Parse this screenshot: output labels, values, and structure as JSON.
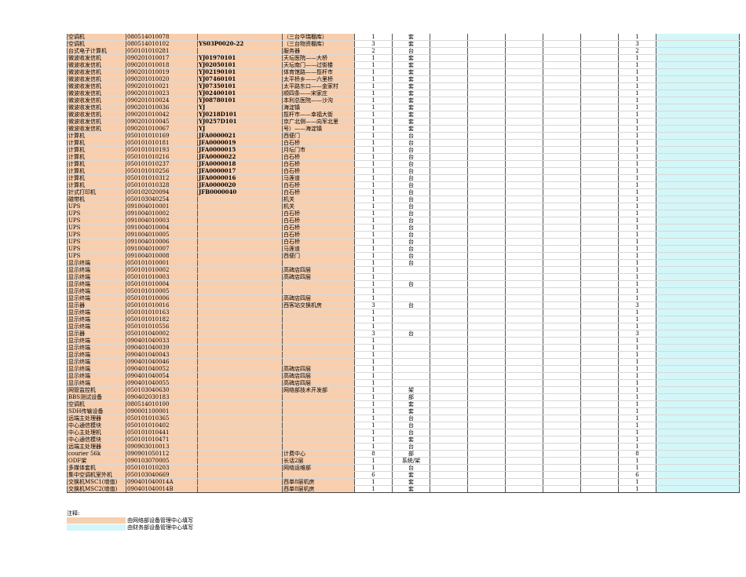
{
  "table": {
    "rows": [
      [
        "空调机",
        "080514010078",
        "",
        "（三台华瑞棚库）",
        "1",
        "套",
        "",
        "",
        "",
        "",
        "",
        "1",
        ""
      ],
      [
        "空调机",
        "080514010102",
        "YS03P0020-22",
        "（三台物资棚库）",
        "3",
        "套",
        "",
        "",
        "",
        "",
        "",
        "3",
        ""
      ],
      [
        "台式电子计算机",
        "050101010281",
        "",
        "服务器",
        "2",
        "台",
        "",
        "",
        "",
        "",
        "",
        "2",
        ""
      ],
      [
        "微波收发信机",
        "090201010017",
        "YJ01970101",
        "天坛医院——大桥",
        "1",
        "套",
        "",
        "",
        "",
        "",
        "",
        "1",
        ""
      ],
      [
        "微波收发信机",
        "090201010018",
        "YJ02050101",
        "天坛南门——过街楼",
        "1",
        "套",
        "",
        "",
        "",
        "",
        "",
        "1",
        ""
      ],
      [
        "微波收发信机",
        "090201010019",
        "YJ02190101",
        "体育馆路——揽杆市",
        "1",
        "套",
        "",
        "",
        "",
        "",
        "",
        "1",
        ""
      ],
      [
        "微波收发信机",
        "090201010020",
        "YJ07460101",
        "太平桥乡——六里桥",
        "1",
        "套",
        "",
        "",
        "",
        "",
        "",
        "1",
        ""
      ],
      [
        "微波收发信机",
        "090201010021",
        "YJ07350101",
        "太平路东口——金家村",
        "1",
        "套",
        "",
        "",
        "",
        "",
        "",
        "1",
        ""
      ],
      [
        "微波收发信机",
        "090201010023",
        "YJ02400101",
        "顺四条——宋家庄",
        "1",
        "套",
        "",
        "",
        "",
        "",
        "",
        "1",
        ""
      ],
      [
        "微波收发信机",
        "090201010024",
        "YJ08780101",
        "本利总医院——沙沟",
        "1",
        "套",
        "",
        "",
        "",
        "",
        "",
        "1",
        ""
      ],
      [
        "微波收发信机",
        "090201010036",
        "YJ",
        "海淀镇",
        "1",
        "套",
        "",
        "",
        "",
        "",
        "",
        "1",
        ""
      ],
      [
        "微波收发信机",
        "090201010042",
        "YJ0218D101",
        "揽杆市——幸福大街",
        "1",
        "套",
        "",
        "",
        "",
        "",
        "",
        "1",
        ""
      ],
      [
        "微波收发信机",
        "090201010045",
        "YJ0257D101",
        "京广北侧——向军北里",
        "1",
        "套",
        "",
        "",
        "",
        "",
        "",
        "1",
        ""
      ],
      [
        "微波收发信机",
        "090201010067",
        "YJ",
        "号）——海淀镇",
        "1",
        "套",
        "",
        "",
        "",
        "",
        "",
        "1",
        ""
      ],
      [
        "计算机",
        "050101010169",
        "JFA0000021",
        "西便门",
        "1",
        "台",
        "",
        "",
        "",
        "",
        "",
        "1",
        ""
      ],
      [
        "计算机",
        "050101010181",
        "JFA0000019",
        "白石桥",
        "1",
        "台",
        "",
        "",
        "",
        "",
        "",
        "1",
        ""
      ],
      [
        "计算机",
        "050101010193",
        "JFA0000015",
        "月坛门市",
        "1",
        "台",
        "",
        "",
        "",
        "",
        "",
        "1",
        ""
      ],
      [
        "计算机",
        "050101010216",
        "JFA0000022",
        "白石桥",
        "1",
        "台",
        "",
        "",
        "",
        "",
        "",
        "1",
        ""
      ],
      [
        "计算机",
        "050101010237",
        "JFA0000018",
        "白石桥",
        "1",
        "台",
        "",
        "",
        "",
        "",
        "",
        "1",
        ""
      ],
      [
        "计算机",
        "050101010256",
        "JFA0000017",
        "白石桥",
        "1",
        "台",
        "",
        "",
        "",
        "",
        "",
        "1",
        ""
      ],
      [
        "计算机",
        "050101010312",
        "JFA0000016",
        "马莲道",
        "1",
        "台",
        "",
        "",
        "",
        "",
        "",
        "1",
        ""
      ],
      [
        "计算机",
        "050101010328",
        "JFA0000020",
        "白石桥",
        "1",
        "台",
        "",
        "",
        "",
        "",
        "",
        "1",
        ""
      ],
      [
        "针式打印机",
        "050102020094",
        "JFB0000040",
        "白石桥",
        "1",
        "台",
        "",
        "",
        "",
        "",
        "",
        "1",
        ""
      ],
      [
        "磁带机",
        "050103040254",
        "",
        "机关",
        "1",
        "台",
        "",
        "",
        "",
        "",
        "",
        "1",
        ""
      ],
      [
        "UPS",
        "091004010001",
        "",
        "机关",
        "1",
        "台",
        "",
        "",
        "",
        "",
        "",
        "1",
        ""
      ],
      [
        "UPS",
        "091004010002",
        "",
        "白石桥",
        "1",
        "台",
        "",
        "",
        "",
        "",
        "",
        "1",
        ""
      ],
      [
        "UPS",
        "091004010003",
        "",
        "白石桥",
        "1",
        "台",
        "",
        "",
        "",
        "",
        "",
        "1",
        ""
      ],
      [
        "UPS",
        "091004010004",
        "",
        "白石桥",
        "1",
        "台",
        "",
        "",
        "",
        "",
        "",
        "1",
        ""
      ],
      [
        "UPS",
        "091004010005",
        "",
        "白石桥",
        "1",
        "台",
        "",
        "",
        "",
        "",
        "",
        "1",
        ""
      ],
      [
        "UPS",
        "091004010006",
        "",
        "白石桥",
        "1",
        "台",
        "",
        "",
        "",
        "",
        "",
        "1",
        ""
      ],
      [
        "UPS",
        "091004010007",
        "",
        "马莲道",
        "1",
        "台",
        "",
        "",
        "",
        "",
        "",
        "1",
        ""
      ],
      [
        "UPS",
        "091004010008",
        "",
        "西便门",
        "1",
        "台",
        "",
        "",
        "",
        "",
        "",
        "1",
        ""
      ],
      [
        "显示终端",
        "050101010001",
        "",
        "",
        "1",
        "台",
        "",
        "",
        "",
        "",
        "",
        "1",
        ""
      ],
      [
        "显示终端",
        "050101010002",
        "",
        "高碑店四层",
        "1",
        "",
        "",
        "",
        "",
        "",
        "",
        "1",
        ""
      ],
      [
        "显示终端",
        "050101010003",
        "",
        "高碑店四层",
        "1",
        "",
        "",
        "",
        "",
        "",
        "",
        "1",
        ""
      ],
      [
        "显示终端",
        "050101010004",
        "",
        "",
        "1",
        "台",
        "",
        "",
        "",
        "",
        "",
        "1",
        ""
      ],
      [
        "显示终端",
        "050101010005",
        "",
        "",
        "1",
        "",
        "",
        "",
        "",
        "",
        "",
        "1",
        ""
      ],
      [
        "显示终端",
        "050101010006",
        "",
        "高碑店四层",
        "1",
        "",
        "",
        "",
        "",
        "",
        "",
        "1",
        ""
      ],
      [
        "显示器",
        "050101010016",
        "",
        "西客站交换机房",
        "3",
        "台",
        "",
        "",
        "",
        "",
        "",
        "3",
        ""
      ],
      [
        "显示终端",
        "050101010163",
        "",
        "",
        "1",
        "",
        "",
        "",
        "",
        "",
        "",
        "1",
        ""
      ],
      [
        "显示终端",
        "050101010182",
        "",
        "",
        "1",
        "",
        "",
        "",
        "",
        "",
        "",
        "1",
        ""
      ],
      [
        "显示终端",
        "050101010556",
        "",
        "",
        "1",
        "",
        "",
        "",
        "",
        "",
        "",
        "1",
        ""
      ],
      [
        "显示器",
        "050101040002",
        "",
        "",
        "3",
        "台",
        "",
        "",
        "",
        "",
        "",
        "3",
        ""
      ],
      [
        "显示终端",
        "090401040033",
        "",
        "",
        "1",
        "",
        "",
        "",
        "",
        "",
        "",
        "1",
        ""
      ],
      [
        "显示终端",
        "090401040039",
        "",
        "",
        "1",
        "",
        "",
        "",
        "",
        "",
        "",
        "1",
        ""
      ],
      [
        "显示终端",
        "090401040043",
        "",
        "",
        "1",
        "",
        "",
        "",
        "",
        "",
        "",
        "1",
        ""
      ],
      [
        "显示终端",
        "090401040046",
        "",
        "",
        "1",
        "",
        "",
        "",
        "",
        "",
        "",
        "1",
        ""
      ],
      [
        "显示终端",
        "090401040052",
        "",
        "高碑店四层",
        "1",
        "",
        "",
        "",
        "",
        "",
        "",
        "1",
        ""
      ],
      [
        "显示终端",
        "090401040054",
        "",
        "高碑店四层",
        "1",
        "",
        "",
        "",
        "",
        "",
        "",
        "1",
        ""
      ],
      [
        "显示终端",
        "090401040055",
        "",
        "高碑店四层",
        "1",
        "",
        "",
        "",
        "",
        "",
        "",
        "1",
        ""
      ],
      [
        "网管监控机",
        "050103040630",
        "",
        "网络部技术开发部",
        "1",
        "架",
        "",
        "",
        "",
        "",
        "",
        "1",
        ""
      ],
      [
        "BBS测试设备",
        "090402030183",
        "",
        "",
        "1",
        "部",
        "",
        "",
        "",
        "",
        "",
        "1",
        ""
      ],
      [
        "空调机",
        "080514010100",
        "",
        "",
        "1",
        "套",
        "",
        "",
        "",
        "",
        "",
        "1",
        ""
      ],
      [
        "SDH传输设备",
        "090001100001",
        "",
        "",
        "1",
        "套",
        "",
        "",
        "",
        "",
        "",
        "1",
        ""
      ],
      [
        "远端主处理器",
        "050101010365",
        "",
        "",
        "1",
        "台",
        "",
        "",
        "",
        "",
        "",
        "1",
        ""
      ],
      [
        "中心通信模块",
        "050101010402",
        "",
        "",
        "1",
        "台",
        "",
        "",
        "",
        "",
        "",
        "1",
        ""
      ],
      [
        "中心主处理机",
        "050101010441",
        "",
        "",
        "1",
        "台",
        "",
        "",
        "",
        "",
        "",
        "1",
        ""
      ],
      [
        "中心通信模块",
        "050101010471",
        "",
        "",
        "1",
        "套",
        "",
        "",
        "",
        "",
        "",
        "1",
        ""
      ],
      [
        "远端主处理器",
        "090903010013",
        "",
        "",
        "1",
        "台",
        "",
        "",
        "",
        "",
        "",
        "1",
        ""
      ],
      [
        "courier 56k",
        "090901050112",
        "",
        "计费中心",
        "8",
        "部",
        "",
        "",
        "",
        "",
        "",
        "8",
        ""
      ],
      [
        "ODF架",
        "090103070005",
        "",
        "长话2层",
        "1",
        "系统/架",
        "",
        "",
        "",
        "",
        "",
        "1",
        ""
      ],
      [
        "多媒体套机",
        "050101010203",
        "",
        "网络运维部",
        "1",
        "台",
        "",
        "",
        "",
        "",
        "",
        "1",
        ""
      ],
      [
        "集中空调机室外机",
        "050103040669",
        "",
        "",
        "6",
        "套",
        "",
        "",
        "",
        "",
        "",
        "6",
        ""
      ],
      [
        "交换机MSC1(增值)",
        "090401040014A",
        "",
        "西单8层机房",
        "1",
        "套",
        "",
        "",
        "",
        "",
        "",
        "1",
        ""
      ],
      [
        "交换机MSC2(增值)",
        "090401040014B",
        "",
        "西单8层机房",
        "1",
        "套",
        "",
        "",
        "",
        "",
        "",
        "1",
        ""
      ]
    ]
  },
  "notes": {
    "title": "注释:",
    "items": [
      {
        "color": "#f8cfae",
        "text": "由网络部设备管理中心填写"
      },
      {
        "color": "#d3f6f8",
        "text": "由财务部设备管理中心填写"
      }
    ]
  }
}
